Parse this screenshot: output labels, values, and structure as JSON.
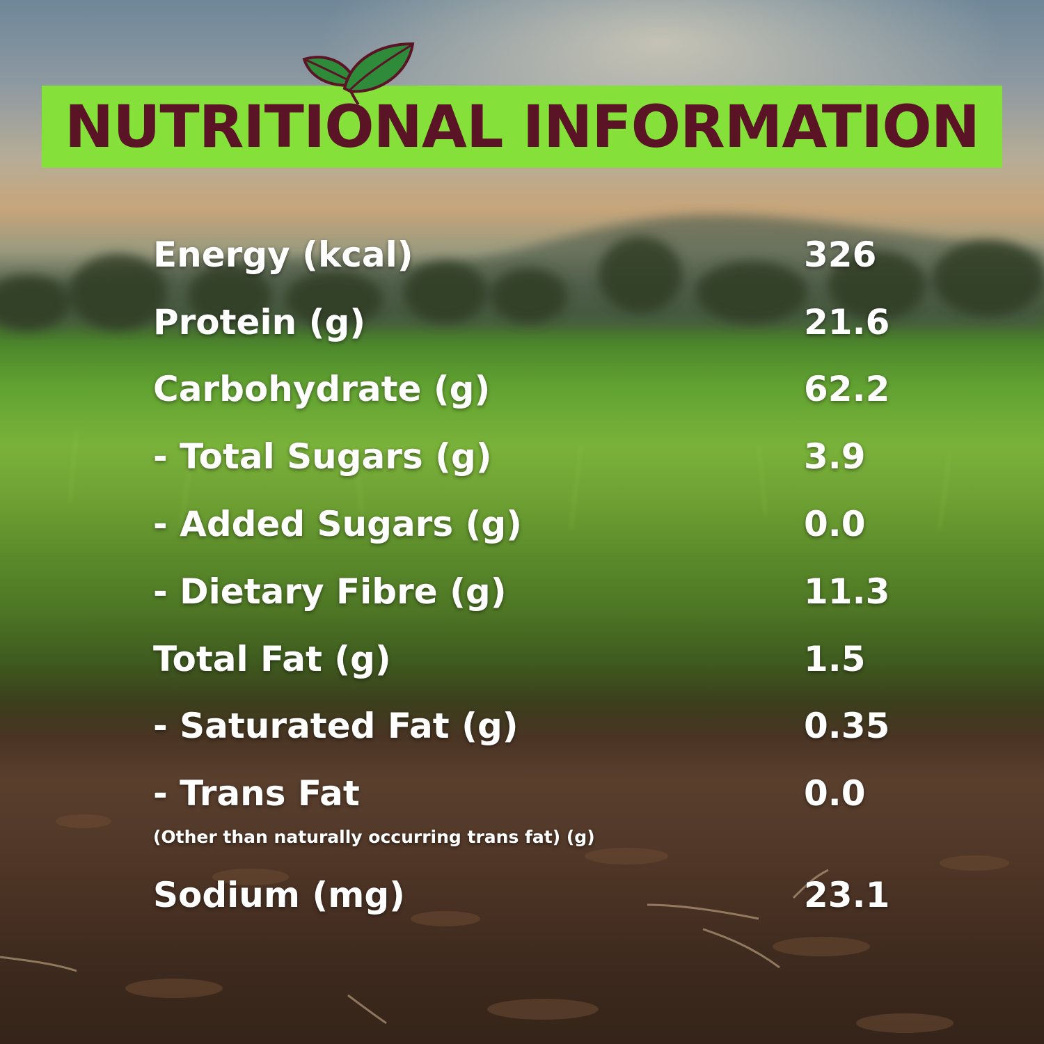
{
  "header": {
    "title": "NUTRITIONAL INFORMATION",
    "bar_color": "#86e03a",
    "title_color": "#5a1426",
    "leaf_icon": "leaf-icon"
  },
  "nutrition": {
    "rows": [
      {
        "label": "Energy (kcal)",
        "value": "326"
      },
      {
        "label": "Protein (g)",
        "value": "21.6"
      },
      {
        "label": "Carbohydrate (g)",
        "value": "62.2"
      },
      {
        "label": "- Total Sugars (g)",
        "value": "3.9"
      },
      {
        "label": "- Added Sugars (g)",
        "value": "0.0"
      },
      {
        "label": "- Dietary Fibre (g)",
        "value": "11.3"
      },
      {
        "label": "Total Fat (g)",
        "value": "1.5"
      },
      {
        "label": "- Saturated Fat (g)",
        "value": "0.35"
      },
      {
        "label": "- Trans Fat",
        "value": "0.0",
        "note": "(Other than naturally occurring trans fat) (g)"
      },
      {
        "label": "Sodium (mg)",
        "value": "23.1"
      }
    ]
  }
}
